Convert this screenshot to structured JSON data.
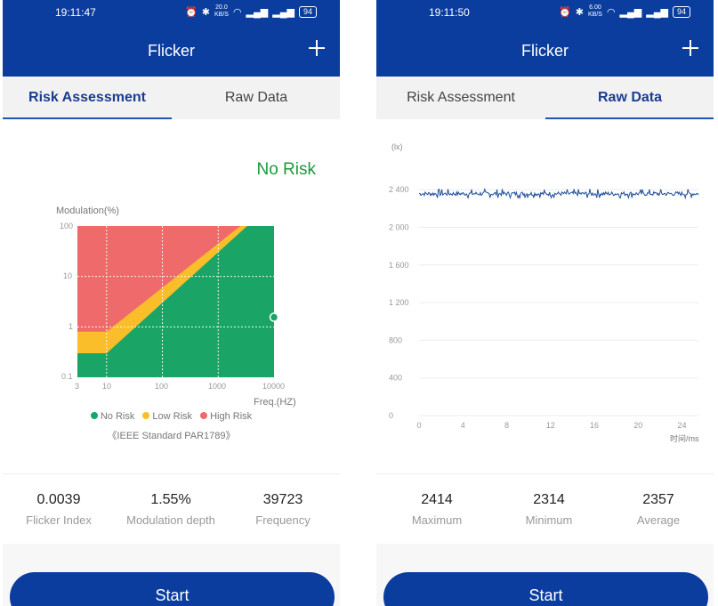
{
  "screens": [
    {
      "status": {
        "time": "19:11:47",
        "speed": "20.0",
        "speed_unit": "KB/S",
        "battery": "94"
      },
      "title": "Flicker",
      "tabs": [
        {
          "label": "Risk Assessment",
          "active": true
        },
        {
          "label": "Raw Data",
          "active": false
        }
      ],
      "risk_status": "No Risk",
      "stats": [
        {
          "value": "0.0039",
          "label": "Flicker Index"
        },
        {
          "value": "1.55%",
          "label": "Modulation depth"
        },
        {
          "value": "39723",
          "label": "Frequency"
        }
      ],
      "start_label": "Start"
    },
    {
      "status": {
        "time": "19:11:50",
        "speed": "6.00",
        "speed_unit": "KB/S",
        "battery": "94"
      },
      "title": "Flicker",
      "tabs": [
        {
          "label": "Risk Assessment",
          "active": false
        },
        {
          "label": "Raw Data",
          "active": true
        }
      ],
      "stats": [
        {
          "value": "2414",
          "label": "Maximum"
        },
        {
          "value": "2314",
          "label": "Minimum"
        },
        {
          "value": "2357",
          "label": "Average"
        }
      ],
      "start_label": "Start"
    }
  ],
  "colors": {
    "header": "#0b3d9e",
    "no_risk": "#1aa567",
    "low_risk": "#f9be2a",
    "high_risk": "#ef6b6b",
    "signal_line": "#1f4f9c",
    "risk_status_text": "#1a9a3c"
  },
  "chart_data": [
    {
      "type": "area",
      "title": "",
      "ylabel": "Modulation(%)",
      "xlabel": "Freq.(HZ)",
      "x_scale": "log",
      "y_scale": "log",
      "xlim": [
        3,
        10000
      ],
      "ylim": [
        0.1,
        100
      ],
      "x_ticks": [
        "3",
        "10",
        "100",
        "1000",
        "10000"
      ],
      "y_ticks": [
        "0.1",
        "1",
        "10",
        "100"
      ],
      "legend": [
        "No Risk",
        "Low Risk",
        "High Risk"
      ],
      "legend_position": "bottom",
      "note": "《IEEE Standard PAR1789》",
      "regions": [
        {
          "name": "High Risk",
          "boundary": [
            [
              3,
              0.8
            ],
            [
              10,
              0.8
            ],
            [
              2500,
              100
            ]
          ]
        },
        {
          "name": "Low Risk",
          "boundary": [
            [
              3,
              0.3
            ],
            [
              10,
              0.3
            ],
            [
              3300,
              100
            ]
          ]
        }
      ],
      "measurement": {
        "x": 10000,
        "y": 1.55
      }
    },
    {
      "type": "line",
      "ylabel": "(lx)",
      "xlabel": "时间/ms",
      "x_ticks": [
        "0",
        "4",
        "8",
        "12",
        "16",
        "20",
        "24"
      ],
      "y_ticks": [
        "0",
        "400",
        "800",
        "1 200",
        "1 600",
        "2 000",
        "2 400"
      ],
      "xlim": [
        0,
        25.5
      ],
      "ylim": [
        0,
        2600
      ],
      "grid": true,
      "series": [
        {
          "values_range": [
            2314,
            2414
          ],
          "average": 2357
        }
      ]
    }
  ]
}
